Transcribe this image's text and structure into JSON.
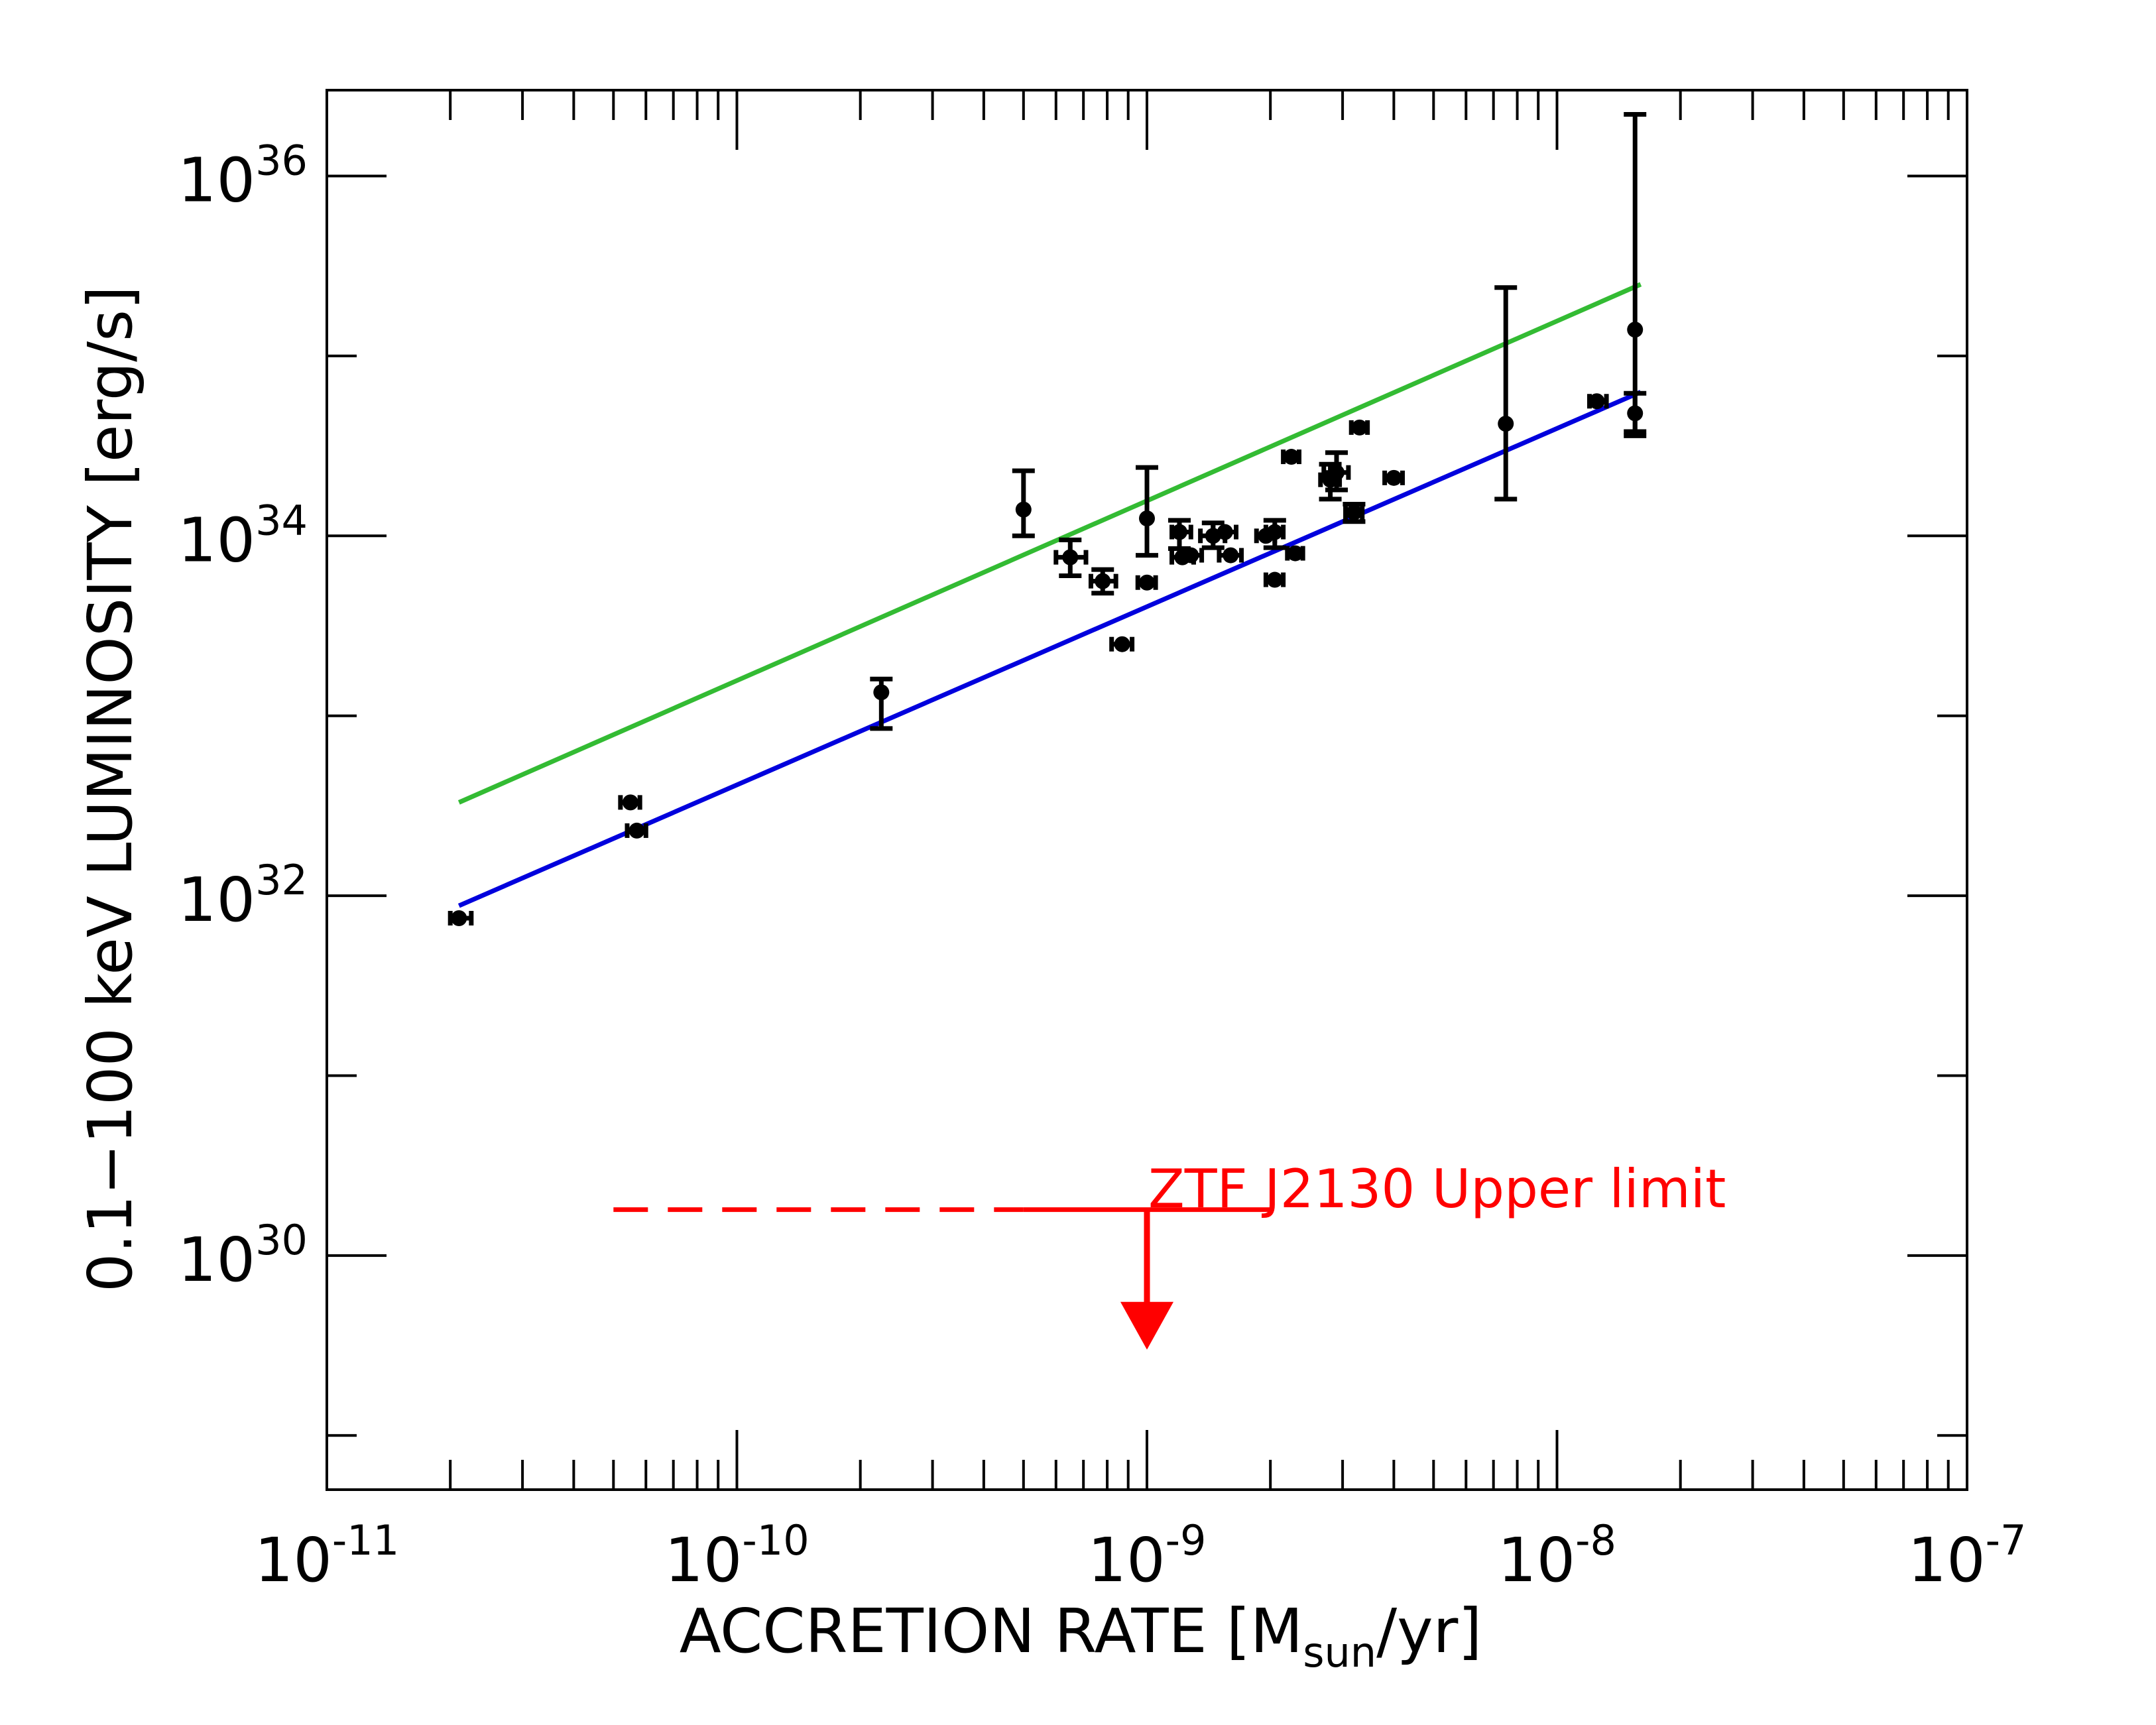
{
  "chart_data": {
    "type": "scatter",
    "xscale": "log",
    "yscale": "log",
    "xlim": [
      1e-11,
      1e-07
    ],
    "ylim": [
      5e+28,
      3e+36
    ],
    "xlabel": {
      "main": "ACCRETION RATE  [M",
      "sub": "sun",
      "tail": "/yr]"
    },
    "ylabel": "0.1−100 keV LUMINOSITY  [erg/s]",
    "x_tick_labels": [
      {
        "value": 1e-11,
        "base": "10",
        "exp": "-11"
      },
      {
        "value": 1e-10,
        "base": "10",
        "exp": "-10"
      },
      {
        "value": 1e-09,
        "base": "10",
        "exp": "-9"
      },
      {
        "value": 1e-08,
        "base": "10",
        "exp": "-8"
      },
      {
        "value": 1e-07,
        "base": "10",
        "exp": "-7"
      }
    ],
    "y_tick_labels": [
      {
        "value": 1e+30,
        "base": "10",
        "exp": "30"
      },
      {
        "value": 1e+32,
        "base": "10",
        "exp": "32"
      },
      {
        "value": 1e+34,
        "base": "10",
        "exp": "34"
      },
      {
        "value": 1e+36,
        "base": "10",
        "exp": "36"
      }
    ],
    "y_minor_ticks": [
      1e+29,
      1e+31,
      1e+33,
      1e+35
    ],
    "points": [
      {
        "x": 2.1e-11,
        "y": 7.5e+31,
        "xerr": [
          2e-11,
          2.25e-11
        ]
      },
      {
        "x": 5.5e-11,
        "y": 3.3e+32,
        "xerr": [
          5.2e-11,
          5.8e-11
        ]
      },
      {
        "x": 5.7e-11,
        "y": 2.3e+32,
        "xerr": [
          5.4e-11,
          6e-11
        ]
      },
      {
        "x": 2.25e-10,
        "y": 1.35e+33,
        "yerr": [
          8.5e+32,
          1.6e+33
        ]
      },
      {
        "x": 5e-10,
        "y": 1.4e+34,
        "yerr": [
          1e+34,
          2.3e+34
        ]
      },
      {
        "x": 6.5e-10,
        "y": 7.6e+33,
        "xerr": [
          6e-10,
          7.1e-10
        ],
        "yerr": [
          6e+33,
          9.5e+33
        ]
      },
      {
        "x": 7.8e-10,
        "y": 5.6e+33,
        "xerr": [
          7.3e-10,
          8.4e-10
        ],
        "yerr": [
          4.8e+33,
          6.5e+33
        ]
      },
      {
        "x": 8.7e-10,
        "y": 2.5e+33,
        "xerr": [
          8.2e-10,
          9.2e-10
        ]
      },
      {
        "x": 1e-09,
        "y": 1.25e+34,
        "yerr": [
          7.8e+33,
          2.4e+34
        ]
      },
      {
        "x": 1e-09,
        "y": 5.5e+33,
        "xerr": [
          9.5e-10,
          1.05e-09
        ]
      },
      {
        "x": 1.2e-09,
        "y": 1.05e+34,
        "xerr": [
          1.15e-09,
          1.28e-09
        ],
        "yerr": [
          8.5e+33,
          1.22e+34
        ]
      },
      {
        "x": 1.22e-09,
        "y": 7.6e+33,
        "xerr": [
          1.15e-09,
          1.3e-09
        ]
      },
      {
        "x": 1.28e-09,
        "y": 7.8e+33,
        "xerr": [
          1.2e-09,
          1.36e-09
        ]
      },
      {
        "x": 1.45e-09,
        "y": 1e+34,
        "xerr": [
          1.35e-09,
          1.55e-09
        ],
        "yerr": [
          8.6e+33,
          1.18e+34
        ]
      },
      {
        "x": 1.55e-09,
        "y": 1.05e+34,
        "xerr": [
          1.45e-09,
          1.65e-09
        ]
      },
      {
        "x": 1.6e-09,
        "y": 7.8e+33,
        "xerr": [
          1.5e-09,
          1.7e-09
        ]
      },
      {
        "x": 1.95e-09,
        "y": 1e+34,
        "xerr": [
          1.85e-09,
          2.05e-09
        ]
      },
      {
        "x": 2.05e-09,
        "y": 1.05e+34,
        "xerr": [
          1.95e-09,
          2.15e-09
        ],
        "yerr": [
          8.6e+33,
          1.22e+34
        ]
      },
      {
        "x": 2.05e-09,
        "y": 5.7e+33,
        "xerr": [
          1.95e-09,
          2.15e-09
        ]
      },
      {
        "x": 2.25e-09,
        "y": 2.75e+34,
        "xerr": [
          2.15e-09,
          2.35e-09
        ]
      },
      {
        "x": 2.3e-09,
        "y": 8e+33,
        "xerr": [
          2.2e-09,
          2.4e-09
        ]
      },
      {
        "x": 2.8e-09,
        "y": 2.05e+34,
        "xerr": [
          2.65e-09,
          2.95e-09
        ],
        "yerr": [
          1.6e+34,
          2.5e+34
        ]
      },
      {
        "x": 2.9e-09,
        "y": 2.25e+34,
        "xerr": [
          2.7e-09,
          3.1e-09
        ],
        "yerr": [
          1.8e+34,
          2.9e+34
        ]
      },
      {
        "x": 3.2e-09,
        "y": 1.35e+34,
        "xerr": [
          3.05e-09,
          3.35e-09
        ],
        "yerr": [
          1.2e+34,
          1.5e+34
        ]
      },
      {
        "x": 3.3e-09,
        "y": 4e+34,
        "xerr": [
          3.15e-09,
          3.45e-09
        ]
      },
      {
        "x": 4e-09,
        "y": 2.1e+34,
        "xerr": [
          3.8e-09,
          4.2e-09
        ]
      },
      {
        "x": 7.5e-09,
        "y": 4.2e+34,
        "yerr": [
          1.6e+34,
          2.4e+35
        ]
      },
      {
        "x": 1.25e-08,
        "y": 5.6e+34,
        "xerr": [
          1.2e-08,
          1.32e-08
        ]
      },
      {
        "x": 1.55e-08,
        "y": 1.4e+35,
        "yerr": [
          3.6e+34,
          2.2e+36
        ]
      },
      {
        "x": 1.55e-08,
        "y": 4.8e+34,
        "yerr": [
          3.8e+34,
          6.2e+34
        ]
      }
    ],
    "series": [
      {
        "name": "green-fit",
        "color": "#33bb33",
        "x": [
          2.1e-11,
          1.6e-08
        ],
        "y": [
          3.3e+32,
          2.5e+35
        ]
      },
      {
        "name": "blue-fit",
        "color": "#0000dd",
        "x": [
          2.1e-11,
          1.6e-08
        ],
        "y": [
          8.8e+31,
          6.3e+34
        ]
      }
    ],
    "upper_limit": {
      "label": "ZTF J2130 Upper limit",
      "color": "#ff0000",
      "y": 1.8e+30,
      "x_dashed": [
        5e-11,
        5e-10
      ],
      "x_solid": [
        5e-10,
        2e-09
      ],
      "arrow_x": 1e-09,
      "arrow_to_y": 3e+29
    }
  }
}
